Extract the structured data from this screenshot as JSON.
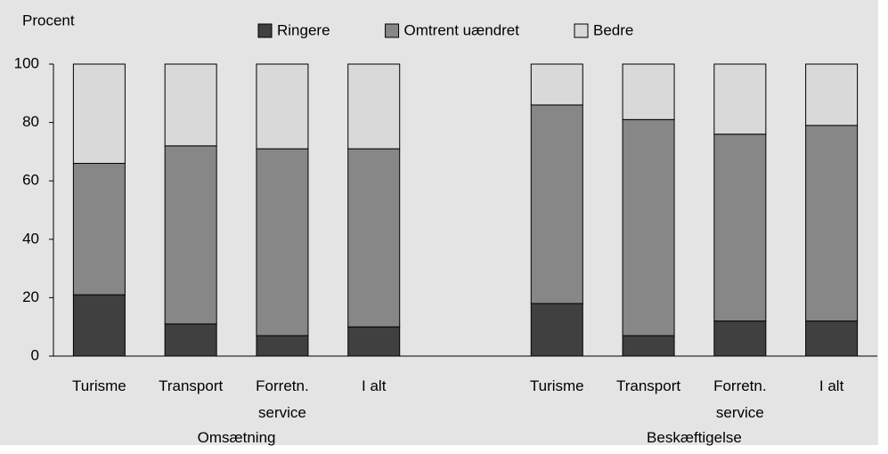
{
  "chart_data": {
    "type": "stacked-bar",
    "y_label": "Procent",
    "categories": [
      "Turisme",
      "Transport",
      "Forretn. service",
      "I alt",
      null,
      "Turisme",
      "Transport",
      "Forretn. service",
      "I alt"
    ],
    "groups": [
      "Omsætning",
      "Beskæftigelse"
    ],
    "series": [
      {
        "name": "Ringere",
        "color": "#404040",
        "values": [
          21,
          11,
          7,
          10,
          null,
          18,
          7,
          12,
          12
        ]
      },
      {
        "name": "Omtrent uændret",
        "color": "#878787",
        "values": [
          45,
          61,
          64,
          61,
          null,
          68,
          74,
          64,
          67
        ]
      },
      {
        "name": "Bedre",
        "color": "#d9d9d9",
        "values": [
          34,
          28,
          29,
          29,
          null,
          14,
          19,
          24,
          21
        ]
      }
    ],
    "ylim": [
      0,
      100
    ],
    "yticks": [
      0,
      20,
      40,
      60,
      80,
      100
    ],
    "grid": false,
    "legend": "top",
    "background": "#e4e4e4"
  }
}
